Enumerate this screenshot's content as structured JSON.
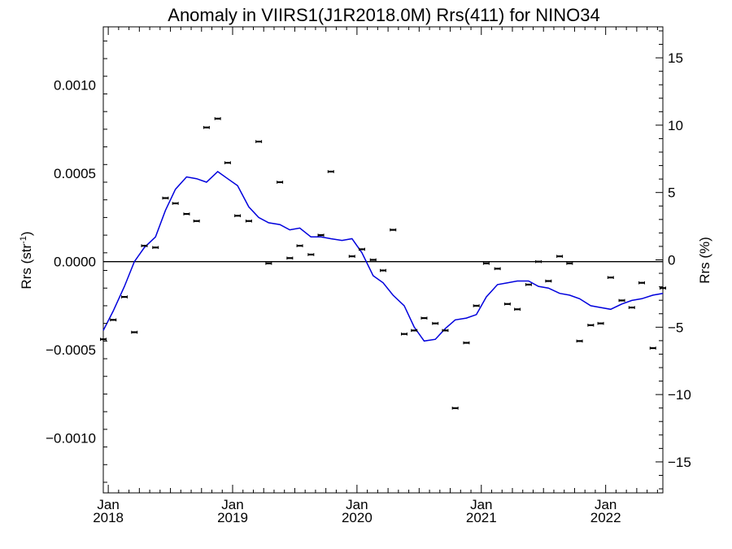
{
  "chart_data": {
    "type": "scatter",
    "title": "Anomaly in VIIRS1(J1R2018.0M) Rrs(411) for NINO34",
    "ylabel_left": "Rrs (str",
    "ylabel_left_sup": "-1",
    "ylabel_left_close": ")",
    "ylabel_right": "Rrs (%)",
    "xlabel": "",
    "xlim": [
      2017.96,
      2022.46
    ],
    "ylim_left": [
      -0.00131,
      0.00133
    ],
    "ylim_right": [
      -17.3,
      17.3
    ],
    "left_ticks": [
      {
        "value": 0.001,
        "label": "0.0010"
      },
      {
        "value": 0.0005,
        "label": "0.0005"
      },
      {
        "value": 0.0,
        "label": "0.0000"
      },
      {
        "value": -0.0005,
        "label": "−0.0005"
      },
      {
        "value": -0.001,
        "label": "−0.0010"
      }
    ],
    "right_ticks": [
      {
        "value": 15,
        "label": "15"
      },
      {
        "value": 10,
        "label": "10"
      },
      {
        "value": 5,
        "label": "5"
      },
      {
        "value": 0,
        "label": "0"
      },
      {
        "value": -5,
        "label": "−5"
      },
      {
        "value": -10,
        "label": "−10"
      },
      {
        "value": -15,
        "label": "−15"
      }
    ],
    "x_ticks": [
      {
        "value": 2018.0,
        "month": "Jan",
        "year": "2018"
      },
      {
        "value": 2019.0,
        "month": "Jan",
        "year": "2019"
      },
      {
        "value": 2020.0,
        "month": "Jan",
        "year": "2020"
      },
      {
        "value": 2021.0,
        "month": "Jan",
        "year": "2021"
      },
      {
        "value": 2022.0,
        "month": "Jan",
        "year": "2022"
      }
    ],
    "zero_line": true,
    "colors": {
      "points": "#000000",
      "smooth": "#0000dd",
      "axes": "#000000"
    },
    "series": [
      {
        "kind": "monthly-points",
        "x": [
          2017.96,
          2018.04,
          2018.13,
          2018.21,
          2018.29,
          2018.38,
          2018.46,
          2018.54,
          2018.63,
          2018.71,
          2018.79,
          2018.88,
          2018.96,
          2019.04,
          2019.13,
          2019.21,
          2019.29,
          2019.38,
          2019.46,
          2019.54,
          2019.63,
          2019.71,
          2019.79,
          2019.96,
          2020.04,
          2020.13,
          2020.21,
          2020.29,
          2020.38,
          2020.46,
          2020.54,
          2020.63,
          2020.71,
          2020.79,
          2020.88,
          2020.96,
          2021.04,
          2021.13,
          2021.21,
          2021.29,
          2021.38,
          2021.46,
          2021.54,
          2021.63,
          2021.71,
          2021.79,
          2021.88,
          2021.96,
          2022.04,
          2022.13,
          2022.21,
          2022.29,
          2022.38,
          2022.46
        ],
        "y": [
          -0.00044,
          -0.00033,
          -0.0002,
          -0.0004,
          9e-05,
          8e-05,
          0.00036,
          0.00033,
          0.00027,
          0.00023,
          0.00076,
          0.00081,
          0.00056,
          0.00026,
          0.00023,
          0.00068,
          -1e-05,
          0.00045,
          2e-05,
          9e-05,
          4e-05,
          0.00015,
          0.00051,
          3e-05,
          7e-05,
          1e-05,
          -5e-05,
          0.00018,
          -0.00041,
          -0.00039,
          -0.00032,
          -0.00035,
          -0.00039,
          -0.00083,
          -0.00046,
          -0.00025,
          -1e-05,
          -4e-05,
          -0.00024,
          -0.00027,
          -0.00013,
          0.0,
          -0.00011,
          3e-05,
          -1e-05,
          -0.00045,
          -0.00036,
          -0.00035,
          -9e-05,
          -0.00022,
          -0.00026,
          -0.00012,
          -0.00049,
          -0.00015
        ]
      },
      {
        "kind": "smoothed-line",
        "x": [
          2017.96,
          2018.04,
          2018.13,
          2018.21,
          2018.29,
          2018.38,
          2018.46,
          2018.54,
          2018.63,
          2018.71,
          2018.79,
          2018.88,
          2018.96,
          2019.04,
          2019.13,
          2019.21,
          2019.29,
          2019.38,
          2019.46,
          2019.54,
          2019.63,
          2019.71,
          2019.79,
          2019.88,
          2019.96,
          2020.04,
          2020.13,
          2020.21,
          2020.29,
          2020.38,
          2020.46,
          2020.54,
          2020.63,
          2020.71,
          2020.79,
          2020.88,
          2020.96,
          2021.04,
          2021.13,
          2021.21,
          2021.29,
          2021.38,
          2021.46,
          2021.54,
          2021.63,
          2021.71,
          2021.79,
          2021.88,
          2021.96,
          2022.04,
          2022.13,
          2022.21,
          2022.29,
          2022.38,
          2022.46
        ],
        "y": [
          -0.00039,
          -0.00028,
          -0.00014,
          0.0,
          8e-05,
          0.00014,
          0.00029,
          0.00041,
          0.00048,
          0.00047,
          0.00045,
          0.00051,
          0.00047,
          0.00043,
          0.00031,
          0.00025,
          0.00022,
          0.00021,
          0.00018,
          0.00019,
          0.00014,
          0.00014,
          0.00013,
          0.00012,
          0.00013,
          5e-05,
          -8e-05,
          -0.00012,
          -0.00019,
          -0.00025,
          -0.00037,
          -0.00045,
          -0.00044,
          -0.00038,
          -0.00033,
          -0.00032,
          -0.0003,
          -0.0002,
          -0.00013,
          -0.00012,
          -0.00011,
          -0.00011,
          -0.00014,
          -0.00015,
          -0.00018,
          -0.00019,
          -0.00021,
          -0.00025,
          -0.00026,
          -0.00027,
          -0.00024,
          -0.00022,
          -0.00021,
          -0.00019,
          -0.00018
        ]
      }
    ]
  }
}
